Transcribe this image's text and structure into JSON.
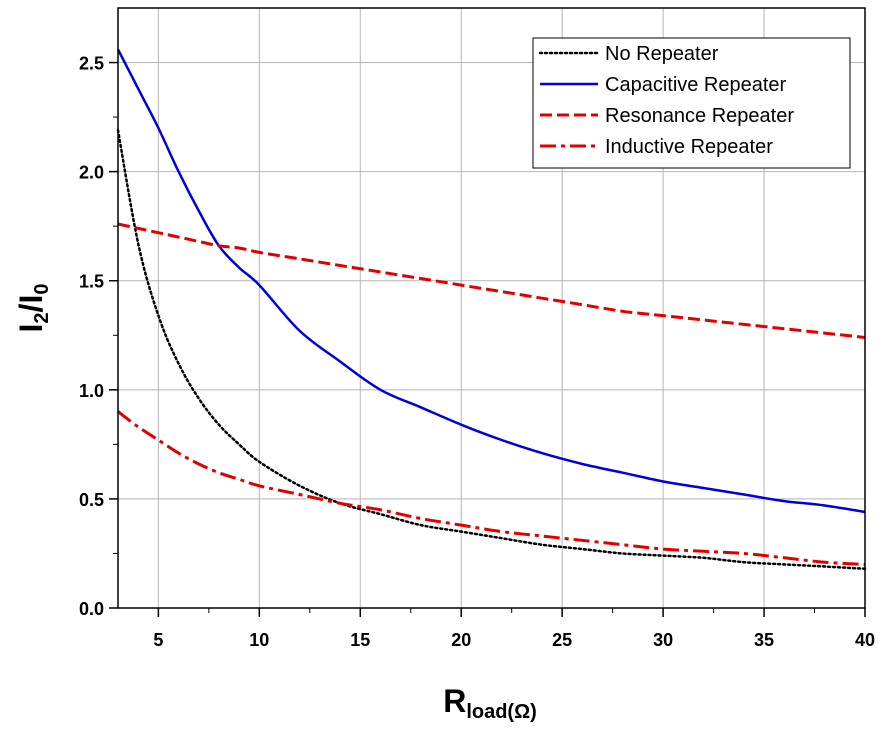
{
  "chart_data": {
    "type": "line",
    "xlabel_main": "R",
    "xlabel_sub": "load(Ω)",
    "ylabel_main": "I",
    "ylabel_sub1": "2",
    "ylabel_mid": "/I",
    "ylabel_sub2": "0",
    "xlim": [
      3,
      40
    ],
    "ylim": [
      0,
      2.75
    ],
    "x_ticks": [
      5,
      10,
      15,
      20,
      25,
      30,
      35,
      40
    ],
    "x_tick_labels": [
      "5",
      "10",
      "15",
      "20",
      "25",
      "30",
      "35",
      "40"
    ],
    "y_ticks": [
      0.0,
      0.5,
      1.0,
      1.5,
      2.0,
      2.5
    ],
    "y_tick_labels": [
      "0.0",
      "0.5",
      "1.0",
      "1.5",
      "2.0",
      "2.5"
    ],
    "grid": true,
    "legend_position": "top-right",
    "x": [
      3,
      4,
      5,
      6,
      7,
      8,
      9,
      10,
      12,
      14,
      16,
      18,
      20,
      22,
      24,
      26,
      28,
      30,
      32,
      34,
      36,
      38,
      40
    ],
    "series": [
      {
        "name": "No Repeater",
        "color": "#000000",
        "style": "dotted",
        "values": [
          2.19,
          1.67,
          1.34,
          1.12,
          0.96,
          0.84,
          0.75,
          0.67,
          0.56,
          0.48,
          0.43,
          0.38,
          0.35,
          0.32,
          0.29,
          0.27,
          0.25,
          0.24,
          0.23,
          0.21,
          0.2,
          0.19,
          0.18
        ]
      },
      {
        "name": "Capacitive Repeater",
        "color": "#0000dd",
        "style": "solid",
        "values": [
          2.56,
          2.38,
          2.2,
          2.0,
          1.82,
          1.66,
          1.56,
          1.48,
          1.27,
          1.13,
          1.0,
          0.92,
          0.84,
          0.77,
          0.71,
          0.66,
          0.62,
          0.58,
          0.55,
          0.52,
          0.49,
          0.47,
          0.44
        ]
      },
      {
        "name": "Resonance Repeater",
        "color": "#e00000",
        "style": "dashed",
        "values": [
          1.76,
          1.74,
          1.72,
          1.7,
          1.68,
          1.66,
          1.65,
          1.63,
          1.6,
          1.57,
          1.54,
          1.51,
          1.48,
          1.45,
          1.42,
          1.39,
          1.36,
          1.34,
          1.32,
          1.3,
          1.28,
          1.26,
          1.24
        ]
      },
      {
        "name": "Inductive Repeater",
        "color": "#e00000",
        "style": "dashdot",
        "values": [
          0.9,
          0.83,
          0.77,
          0.71,
          0.66,
          0.62,
          0.59,
          0.56,
          0.52,
          0.48,
          0.45,
          0.41,
          0.38,
          0.35,
          0.33,
          0.31,
          0.29,
          0.27,
          0.26,
          0.25,
          0.23,
          0.21,
          0.2
        ]
      }
    ]
  }
}
